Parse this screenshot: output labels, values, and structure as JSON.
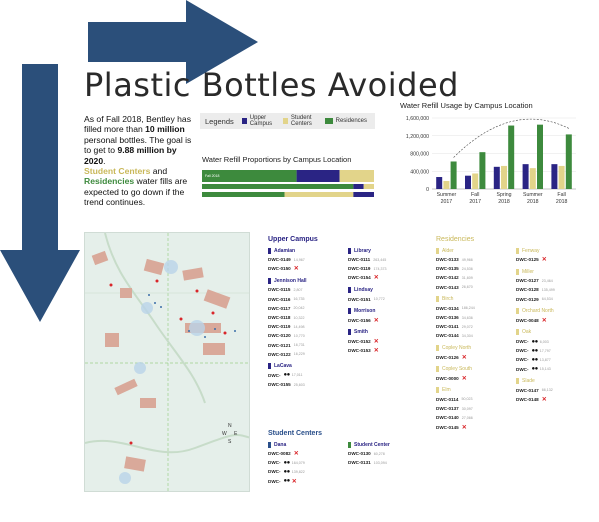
{
  "title": "Plastic Bottles Avoided",
  "intro": {
    "p1": "As of Fall 2018, Bentley has filled more than ",
    "p1_bold": "10 million",
    "p2": " personal bottles. The goal is to get to ",
    "p2_bold": "9.88 million by 2020",
    "p2_end": ".",
    "p3_a": "Student Centers",
    "p3_b": " and ",
    "p3_c": "Residencies",
    "p3_d": " water fills are expected to go down if the trend continues."
  },
  "legend": {
    "label": "Legends",
    "items": [
      {
        "label": "Upper Campus",
        "color": "#2a2484"
      },
      {
        "label": "Student Centers",
        "color": "#e2d48a"
      },
      {
        "label": "Residences",
        "color": "#3d8a3d"
      }
    ]
  },
  "colors": {
    "upper_campus": "#2a2484",
    "student_centers": "#e2d48a",
    "residences": "#3d8a3d",
    "arrow": "#2b4f7a",
    "red_x": "#d9262a"
  },
  "chart_data": [
    {
      "type": "bar",
      "title": "Water Refill Proportions by Campus Location",
      "orientation": "horizontal-stacked",
      "bars": [
        {
          "label": "Fall 2018",
          "values": {
            "Residences": 0.55,
            "Upper Campus": 0.25,
            "Student Centers": 0.2
          }
        },
        {
          "label": "",
          "values": {
            "Residences": 0.88,
            "Upper Campus": 0.06,
            "Student Centers": 0.06
          }
        },
        {
          "label": "",
          "values": {
            "Residences": 0.48,
            "Student Centers": 0.4,
            "Upper Campus": 0.12
          }
        }
      ]
    },
    {
      "type": "bar",
      "title": "Water Refill Usage by Campus Location",
      "categories": [
        "Summer 2017",
        "Fall 2017",
        "Spring 2018",
        "Summer 2018",
        "Fall 2018"
      ],
      "category_lines": [
        [
          "Summer",
          "2017"
        ],
        [
          "Fall",
          "2017"
        ],
        [
          "Spring",
          "2018"
        ],
        [
          "Summer",
          "2018"
        ],
        [
          "Fall",
          "2018"
        ]
      ],
      "series": [
        {
          "name": "Upper Campus",
          "color": "#2a2484",
          "values": [
            270000,
            300000,
            500000,
            560000,
            560000
          ]
        },
        {
          "name": "Student Centers",
          "color": "#e2d48a",
          "values": [
            180000,
            350000,
            520000,
            470000,
            520000
          ]
        },
        {
          "name": "Residences",
          "color": "#3d8a3d",
          "values": [
            620000,
            830000,
            1430000,
            1450000,
            1230000
          ]
        }
      ],
      "ylim": [
        0,
        1600000
      ],
      "yticks": [
        "0",
        "200,000",
        "400,000",
        "600,000",
        "800,000",
        "1,000,000",
        "1,200,000",
        "1,400,000",
        "1,600,000"
      ],
      "ytick_values": [
        0,
        200000,
        400000,
        600000,
        800000,
        1000000,
        1200000,
        1400000,
        1600000
      ],
      "trendline": "dashed"
    }
  ],
  "upper_campus": {
    "title": "Upper Campus",
    "buildings": [
      {
        "name": "Adamian",
        "rows": [
          {
            "code": "DWC-0149",
            "num": "14,967",
            "x": false,
            "dots": 0
          },
          {
            "code": "DWC-0150",
            "num": "",
            "x": true,
            "dots": 0
          }
        ]
      },
      {
        "name": "Jennison Hall",
        "rows": [
          {
            "code": "DWC-0115",
            "num": "2,807",
            "x": false,
            "dots": 0
          },
          {
            "code": "DWC-0116",
            "num": "16,735",
            "x": false,
            "dots": 0
          },
          {
            "code": "DWC-0117",
            "num": "20,042",
            "x": false,
            "dots": 0
          },
          {
            "code": "DWC-0118",
            "num": "10,322",
            "x": false,
            "dots": 0
          },
          {
            "code": "DWC-0119",
            "num": "14,498",
            "x": false,
            "dots": 0
          },
          {
            "code": "DWC-0120",
            "num": "10,770",
            "x": false,
            "dots": 0
          },
          {
            "code": "DWC-0121",
            "num": "16,731",
            "x": false,
            "dots": 0
          },
          {
            "code": "DWC-0122",
            "num": "16,229",
            "x": false,
            "dots": 0
          }
        ]
      },
      {
        "name": "LaCava",
        "rows": [
          {
            "code": "DWC-",
            "num": "17,011",
            "x": false,
            "dots": 2
          },
          {
            "code": "DWC-0155",
            "num": "25,603",
            "x": false,
            "dots": 0
          }
        ]
      },
      {
        "name": "Library",
        "rows": [
          {
            "code": "DWC-0111",
            "num": "263,445",
            "x": false,
            "dots": 0
          },
          {
            "code": "DWC-0119",
            "num": "174,373",
            "x": false,
            "dots": 0
          },
          {
            "code": "DWC-0154",
            "num": "",
            "x": true,
            "dots": 0
          }
        ]
      },
      {
        "name": "Lindsay",
        "rows": [
          {
            "code": "DWC-0151",
            "num": "10,772",
            "x": false,
            "dots": 0
          }
        ]
      },
      {
        "name": "Morrison",
        "rows": [
          {
            "code": "DWC-0156",
            "num": "",
            "x": true,
            "dots": 0
          }
        ]
      },
      {
        "name": "Smith",
        "rows": [
          {
            "code": "DWC-0152",
            "num": "",
            "x": true,
            "dots": 0
          },
          {
            "code": "DWC-0153",
            "num": "",
            "x": true,
            "dots": 0
          }
        ]
      }
    ]
  },
  "student_centers": {
    "title": "Student Centers",
    "buildings": [
      {
        "name": "Dana",
        "rows": [
          {
            "code": "DWC-0082",
            "num": "",
            "x": true,
            "dots": 0
          },
          {
            "code": "DWC-",
            "num": "164,079",
            "x": false,
            "dots": 2
          },
          {
            "code": "DWC-",
            "num": "139,822",
            "x": false,
            "dots": 2
          },
          {
            "code": "DWC-",
            "num": "",
            "x": true,
            "dots": 2
          }
        ]
      },
      {
        "name": "Student Center",
        "rows": [
          {
            "code": "DWC-0130",
            "num": "60,278",
            "x": false,
            "dots": 0
          },
          {
            "code": "DWC-0131",
            "num": "103,094",
            "x": false,
            "dots": 0
          }
        ]
      }
    ]
  },
  "residencies": {
    "title": "Residencies",
    "buildings": [
      {
        "name": "Alder",
        "rows": [
          {
            "code": "DWC-0133",
            "num": "49,966",
            "x": false,
            "dots": 0
          },
          {
            "code": "DWC-0135",
            "num": "24,536",
            "x": false,
            "dots": 0
          },
          {
            "code": "DWC-0142",
            "num": "31,609",
            "x": false,
            "dots": 0
          },
          {
            "code": "DWC-0143",
            "num": "26,670",
            "x": false,
            "dots": 0
          }
        ]
      },
      {
        "name": "Birch",
        "rows": [
          {
            "code": "DWC-0134",
            "num": "186,244",
            "x": false,
            "dots": 0
          },
          {
            "code": "DWC-0136",
            "num": "34,636",
            "x": false,
            "dots": 0
          },
          {
            "code": "DWC-0141",
            "num": "29,072",
            "x": false,
            "dots": 0
          },
          {
            "code": "DWC-0144",
            "num": "34,304",
            "x": false,
            "dots": 0
          }
        ]
      },
      {
        "name": "Copley North",
        "rows": [
          {
            "code": "DWC-0126",
            "num": "",
            "x": true,
            "dots": 0
          }
        ]
      },
      {
        "name": "Copley South",
        "rows": [
          {
            "code": "DWC-0000",
            "num": "",
            "x": true,
            "dots": 0
          }
        ]
      },
      {
        "name": "Elm",
        "rows": [
          {
            "code": "DWC-0114",
            "num": "50,023",
            "x": false,
            "dots": 0
          },
          {
            "code": "DWC-0137",
            "num": "30,097",
            "x": false,
            "dots": 0
          },
          {
            "code": "DWC-0140",
            "num": "27,066",
            "x": false,
            "dots": 0
          },
          {
            "code": "DWC-0145",
            "num": "",
            "x": true,
            "dots": 0
          }
        ]
      },
      {
        "name": "Fenway",
        "rows": [
          {
            "code": "DWC-0125",
            "num": "",
            "x": true,
            "dots": 0
          }
        ]
      },
      {
        "name": "Miller",
        "rows": [
          {
            "code": "DWC-0127",
            "num": "23,464",
            "x": false,
            "dots": 0
          },
          {
            "code": "DWC-0128",
            "num": "135,499",
            "x": false,
            "dots": 0
          },
          {
            "code": "DWC-0129",
            "num": "64,534",
            "x": false,
            "dots": 0
          }
        ]
      },
      {
        "name": "Orchard North",
        "rows": [
          {
            "code": "DWC-0048",
            "num": "",
            "x": true,
            "dots": 0
          }
        ]
      },
      {
        "name": "Oak",
        "rows": [
          {
            "code": "DWC-",
            "num": "6,003",
            "x": false,
            "dots": 2
          },
          {
            "code": "DWC-",
            "num": "17,797",
            "x": false,
            "dots": 2
          },
          {
            "code": "DWC-",
            "num": "13,877",
            "x": false,
            "dots": 2
          },
          {
            "code": "DWC-",
            "num": "15,143",
            "x": false,
            "dots": 2
          }
        ]
      },
      {
        "name": "Slade",
        "rows": [
          {
            "code": "DWC-0147",
            "num": "66,132",
            "x": false,
            "dots": 0
          },
          {
            "code": "DWC-0148",
            "num": "",
            "x": true,
            "dots": 0
          }
        ]
      }
    ]
  },
  "map": {
    "compass_n": "N",
    "compass_s": "S",
    "compass_e": "E",
    "compass_w": "W"
  }
}
